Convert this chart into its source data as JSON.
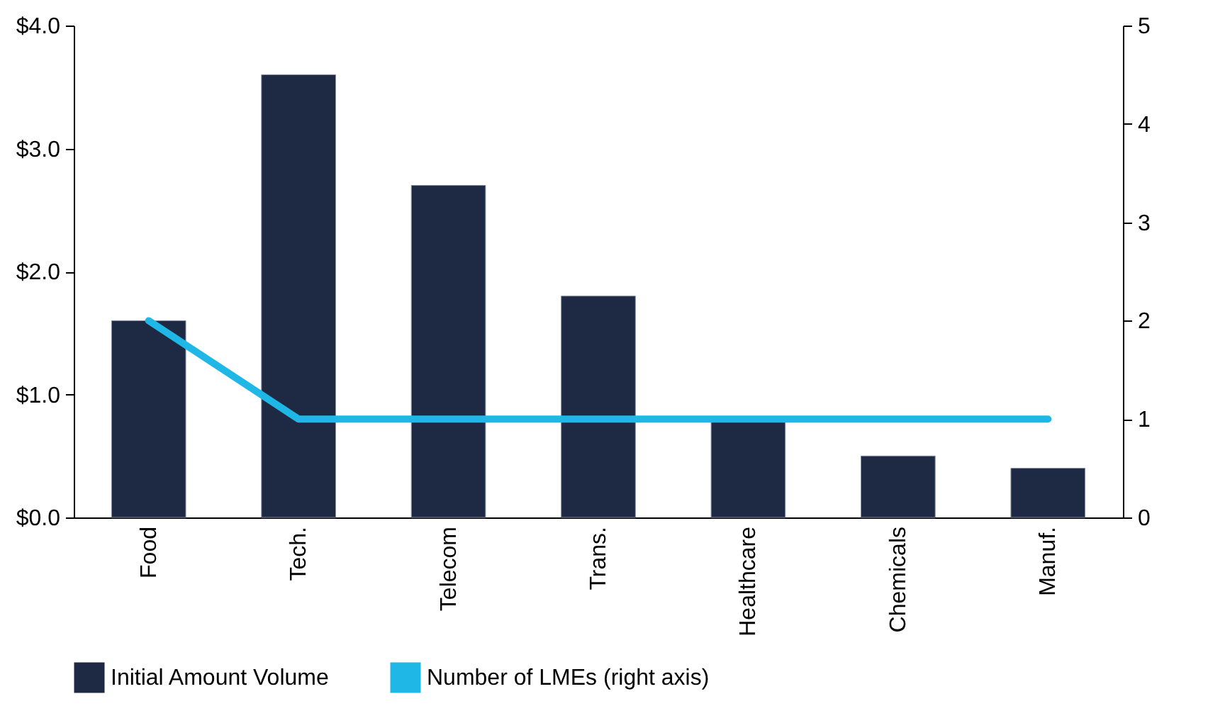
{
  "chart_data": {
    "type": "bar",
    "categories": [
      "Food",
      "Tech.",
      "Telecom",
      "Trans.",
      "Healthcare",
      "Chemicals",
      "Manuf."
    ],
    "series": [
      {
        "name": "Initial Amount Volume",
        "color": "#1e2a44",
        "values": [
          1.6,
          3.6,
          2.7,
          1.8,
          0.8,
          0.5,
          0.4
        ]
      },
      {
        "name": "Number of LMEs (right axis)",
        "color": "#1fb8e6",
        "type": "line",
        "axis": "y2",
        "values": [
          2,
          1,
          1,
          1,
          1,
          1,
          1
        ]
      }
    ],
    "ylim": [
      0,
      4
    ],
    "yticks": [
      {
        "value": 0,
        "label": "$0.0"
      },
      {
        "value": 1,
        "label": "$1.0"
      },
      {
        "value": 2,
        "label": "$2.0"
      },
      {
        "value": 3,
        "label": "$3.0"
      },
      {
        "value": 4,
        "label": "$4.0"
      }
    ],
    "y2lim": [
      0,
      5
    ],
    "y2ticks": [
      0,
      1,
      2,
      3,
      4,
      5
    ],
    "grid": false,
    "legend": "bottom",
    "marker": "none",
    "line_style": "solid"
  }
}
